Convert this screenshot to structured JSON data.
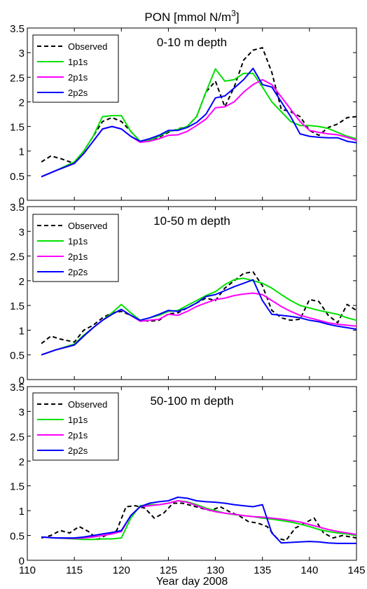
{
  "figure": {
    "title_main": "PON [mmol N/m",
    "title_sup": "3",
    "title_end": "]",
    "xlabel": "Year day 2008"
  },
  "chart_data": [
    {
      "type": "line",
      "panel_title": "0-10 m depth",
      "xlim": [
        110,
        145
      ],
      "ylim": [
        0,
        3.5
      ],
      "x_ticks": [
        110,
        115,
        120,
        125,
        130,
        135,
        140,
        145
      ],
      "y_ticks": [
        0,
        0.5,
        1,
        1.5,
        2,
        2.5,
        3,
        3.5
      ],
      "series": [
        {
          "name": "Observed",
          "color": "#000000",
          "dash": "dashed",
          "x": [
            111.5,
            112.5,
            113.5,
            115,
            116,
            117,
            118,
            119,
            120,
            121,
            122,
            123,
            124,
            125,
            126,
            127,
            128,
            129,
            130,
            131,
            132,
            133,
            134,
            135,
            136,
            137,
            138,
            139,
            140,
            141,
            142,
            143,
            144,
            145
          ],
          "y": [
            0.78,
            0.9,
            0.85,
            0.75,
            1.0,
            1.3,
            1.6,
            1.68,
            1.6,
            1.4,
            1.2,
            1.22,
            1.28,
            1.38,
            1.45,
            1.5,
            1.7,
            2.2,
            2.42,
            1.9,
            2.3,
            2.85,
            3.05,
            3.1,
            2.6,
            1.85,
            1.8,
            1.7,
            1.42,
            1.32,
            1.48,
            1.55,
            1.68,
            1.7
          ]
        },
        {
          "name": "1p1s",
          "color": "#00e000",
          "dash": "solid",
          "x": [
            111.5,
            113,
            115,
            116,
            117,
            118,
            119,
            120,
            121,
            122,
            123,
            124,
            125,
            126,
            127,
            128,
            129,
            130,
            131,
            132,
            133,
            134,
            135,
            136,
            137,
            138,
            139,
            140,
            141,
            142,
            143,
            144,
            145
          ],
          "y": [
            0.48,
            0.6,
            0.78,
            1.0,
            1.3,
            1.7,
            1.72,
            1.72,
            1.4,
            1.2,
            1.22,
            1.3,
            1.4,
            1.44,
            1.5,
            1.7,
            2.2,
            2.67,
            2.42,
            2.45,
            2.58,
            2.58,
            2.3,
            2.0,
            1.8,
            1.6,
            1.52,
            1.52,
            1.5,
            1.46,
            1.38,
            1.3,
            1.25
          ]
        },
        {
          "name": "2p1s",
          "color": "#ff00ff",
          "dash": "solid",
          "x": [
            111.5,
            113,
            115,
            116,
            117,
            118,
            119,
            120,
            121,
            122,
            123,
            124,
            125,
            126,
            127,
            128,
            129,
            130,
            131,
            132,
            133,
            134,
            135,
            136,
            137,
            138,
            139,
            140,
            141,
            142,
            143,
            144,
            145
          ],
          "y": [
            0.48,
            0.6,
            0.75,
            0.95,
            1.2,
            1.45,
            1.5,
            1.45,
            1.3,
            1.18,
            1.2,
            1.25,
            1.32,
            1.33,
            1.4,
            1.52,
            1.65,
            1.88,
            1.9,
            2.0,
            2.2,
            2.35,
            2.45,
            2.35,
            2.1,
            1.85,
            1.6,
            1.42,
            1.38,
            1.35,
            1.33,
            1.28,
            1.22
          ]
        },
        {
          "name": "2p2s",
          "color": "#0000ff",
          "dash": "solid",
          "x": [
            111.5,
            113,
            115,
            116,
            117,
            118,
            119,
            120,
            121,
            122,
            123,
            124,
            125,
            126,
            127,
            128,
            129,
            130,
            131,
            132,
            133,
            134,
            135,
            136,
            137,
            138,
            139,
            140,
            141,
            142,
            143,
            144,
            145
          ],
          "y": [
            0.48,
            0.6,
            0.75,
            0.95,
            1.2,
            1.45,
            1.5,
            1.45,
            1.3,
            1.2,
            1.25,
            1.32,
            1.42,
            1.42,
            1.48,
            1.58,
            1.75,
            2.08,
            2.12,
            2.28,
            2.45,
            2.68,
            2.35,
            2.3,
            2.0,
            1.7,
            1.35,
            1.3,
            1.28,
            1.27,
            1.27,
            1.2,
            1.17
          ]
        }
      ]
    },
    {
      "type": "line",
      "panel_title": "10-50 m depth",
      "xlim": [
        110,
        145
      ],
      "ylim": [
        0,
        3.5
      ],
      "x_ticks": [
        110,
        115,
        120,
        125,
        130,
        135,
        140,
        145
      ],
      "y_ticks": [
        0,
        0.5,
        1,
        1.5,
        2,
        2.5,
        3,
        3.5
      ],
      "series": [
        {
          "name": "Observed",
          "color": "#000000",
          "dash": "dashed",
          "x": [
            111.5,
            112.5,
            113.5,
            115,
            116,
            117,
            118,
            119,
            120,
            121,
            122,
            123,
            124,
            125,
            126,
            127,
            128,
            129,
            130,
            131,
            132,
            133,
            134,
            135,
            136,
            137,
            138,
            139,
            140,
            141,
            142,
            143,
            144,
            145
          ],
          "y": [
            0.73,
            0.88,
            0.82,
            0.76,
            1.0,
            1.1,
            1.25,
            1.35,
            1.38,
            1.3,
            1.2,
            1.18,
            1.2,
            1.33,
            1.35,
            1.45,
            1.55,
            1.65,
            1.6,
            1.85,
            2.0,
            2.15,
            2.18,
            1.9,
            1.4,
            1.25,
            1.2,
            1.22,
            1.62,
            1.58,
            1.3,
            1.15,
            1.52,
            1.4
          ]
        },
        {
          "name": "1p1s",
          "color": "#00e000",
          "dash": "solid",
          "x": [
            111.5,
            113,
            115,
            116,
            117,
            118,
            119,
            120,
            121,
            122,
            123,
            124,
            125,
            126,
            127,
            128,
            129,
            130,
            131,
            132,
            133,
            134,
            135,
            136,
            137,
            138,
            139,
            140,
            141,
            142,
            143,
            144,
            145
          ],
          "y": [
            0.5,
            0.6,
            0.72,
            0.9,
            1.05,
            1.2,
            1.35,
            1.52,
            1.35,
            1.2,
            1.25,
            1.3,
            1.38,
            1.4,
            1.5,
            1.6,
            1.7,
            1.78,
            1.92,
            2.02,
            2.05,
            2.0,
            1.95,
            1.85,
            1.72,
            1.6,
            1.5,
            1.45,
            1.4,
            1.36,
            1.32,
            1.25,
            1.2
          ]
        },
        {
          "name": "2p1s",
          "color": "#ff00ff",
          "dash": "solid",
          "x": [
            111.5,
            113,
            115,
            116,
            117,
            118,
            119,
            120,
            121,
            122,
            123,
            124,
            125,
            126,
            127,
            128,
            129,
            130,
            131,
            132,
            133,
            134,
            135,
            136,
            137,
            138,
            139,
            140,
            141,
            142,
            143,
            144,
            145
          ],
          "y": [
            0.5,
            0.6,
            0.7,
            0.88,
            1.05,
            1.2,
            1.32,
            1.42,
            1.3,
            1.18,
            1.2,
            1.22,
            1.32,
            1.3,
            1.38,
            1.48,
            1.55,
            1.62,
            1.65,
            1.7,
            1.73,
            1.75,
            1.72,
            1.6,
            1.48,
            1.38,
            1.3,
            1.25,
            1.2,
            1.15,
            1.12,
            1.1,
            1.08
          ]
        },
        {
          "name": "2p2s",
          "color": "#0000ff",
          "dash": "solid",
          "x": [
            111.5,
            113,
            115,
            116,
            117,
            118,
            119,
            120,
            121,
            122,
            123,
            124,
            125,
            126,
            127,
            128,
            129,
            130,
            131,
            132,
            133,
            134,
            135,
            136,
            137,
            138,
            139,
            140,
            141,
            142,
            143,
            144,
            145
          ],
          "y": [
            0.5,
            0.6,
            0.7,
            0.88,
            1.05,
            1.2,
            1.32,
            1.42,
            1.3,
            1.2,
            1.25,
            1.32,
            1.4,
            1.38,
            1.45,
            1.55,
            1.68,
            1.72,
            1.8,
            1.88,
            1.95,
            2.02,
            1.6,
            1.32,
            1.3,
            1.28,
            1.25,
            1.2,
            1.17,
            1.12,
            1.08,
            1.05,
            1.02
          ]
        }
      ]
    },
    {
      "type": "line",
      "panel_title": "50-100 m depth",
      "xlim": [
        110,
        145
      ],
      "ylim": [
        0,
        3.5
      ],
      "x_ticks": [
        110,
        115,
        120,
        125,
        130,
        135,
        140,
        145
      ],
      "y_ticks": [
        0,
        0.5,
        1,
        1.5,
        2,
        2.5,
        3,
        3.5
      ],
      "series": [
        {
          "name": "Observed",
          "color": "#000000",
          "dash": "dashed",
          "x": [
            111.5,
            112.5,
            113.5,
            114.5,
            115.5,
            116.5,
            117.5,
            118.5,
            119.5,
            120.5,
            121.5,
            122.5,
            123.5,
            124.5,
            125.5,
            126.5,
            127.5,
            128.5,
            129.5,
            130.5,
            131.5,
            132.5,
            133.5,
            134.5,
            135.5,
            136.5,
            137.5,
            138.5,
            139.5,
            140.5,
            141.5,
            142.5,
            143.5,
            145
          ],
          "y": [
            0.45,
            0.5,
            0.6,
            0.55,
            0.68,
            0.58,
            0.42,
            0.52,
            0.6,
            1.08,
            1.1,
            1.05,
            0.85,
            0.95,
            1.15,
            1.15,
            1.1,
            1.05,
            1.0,
            1.08,
            0.98,
            0.9,
            0.78,
            0.75,
            0.68,
            0.45,
            0.4,
            0.65,
            0.75,
            0.85,
            0.55,
            0.45,
            0.5,
            0.45
          ]
        },
        {
          "name": "1p1s",
          "color": "#00e000",
          "dash": "solid",
          "x": [
            111.5,
            113,
            115,
            116,
            117,
            118,
            119,
            120,
            121,
            122,
            123,
            124,
            125,
            126,
            127,
            128,
            129,
            130,
            131,
            132,
            133,
            134,
            135,
            136,
            137,
            138,
            139,
            140,
            141,
            142,
            143,
            144,
            145
          ],
          "y": [
            0.47,
            0.45,
            0.43,
            0.42,
            0.42,
            0.43,
            0.43,
            0.45,
            0.85,
            1.1,
            1.12,
            1.12,
            1.15,
            1.2,
            1.18,
            1.12,
            1.05,
            1.0,
            0.95,
            0.92,
            0.9,
            0.88,
            0.85,
            0.83,
            0.8,
            0.77,
            0.73,
            0.68,
            0.62,
            0.58,
            0.55,
            0.53,
            0.5
          ]
        },
        {
          "name": "2p1s",
          "color": "#ff00ff",
          "dash": "solid",
          "x": [
            111.5,
            113,
            115,
            116,
            117,
            118,
            119,
            120,
            121,
            122,
            123,
            124,
            125,
            126,
            127,
            128,
            129,
            130,
            131,
            132,
            133,
            134,
            135,
            136,
            137,
            138,
            139,
            140,
            141,
            142,
            143,
            144,
            145
          ],
          "y": [
            0.47,
            0.45,
            0.44,
            0.45,
            0.47,
            0.5,
            0.53,
            0.58,
            0.9,
            1.08,
            1.1,
            1.12,
            1.15,
            1.2,
            1.17,
            1.1,
            1.03,
            0.98,
            0.95,
            0.93,
            0.9,
            0.88,
            0.87,
            0.85,
            0.83,
            0.8,
            0.77,
            0.72,
            0.67,
            0.62,
            0.58,
            0.55,
            0.52
          ]
        },
        {
          "name": "2p2s",
          "color": "#0000ff",
          "dash": "solid",
          "x": [
            111.5,
            113,
            115,
            116,
            117,
            118,
            119,
            120,
            121,
            122,
            123,
            124,
            125,
            126,
            127,
            128,
            129,
            130,
            131,
            132,
            133,
            134,
            135,
            136,
            137,
            138,
            139,
            140,
            141,
            142,
            143,
            144,
            145
          ],
          "y": [
            0.47,
            0.45,
            0.45,
            0.47,
            0.5,
            0.53,
            0.56,
            0.6,
            0.9,
            1.08,
            1.15,
            1.18,
            1.2,
            1.27,
            1.25,
            1.2,
            1.18,
            1.17,
            1.15,
            1.12,
            1.1,
            1.08,
            1.12,
            0.55,
            0.35,
            0.36,
            0.37,
            0.38,
            0.37,
            0.35,
            0.34,
            0.34,
            0.34
          ]
        }
      ]
    }
  ]
}
